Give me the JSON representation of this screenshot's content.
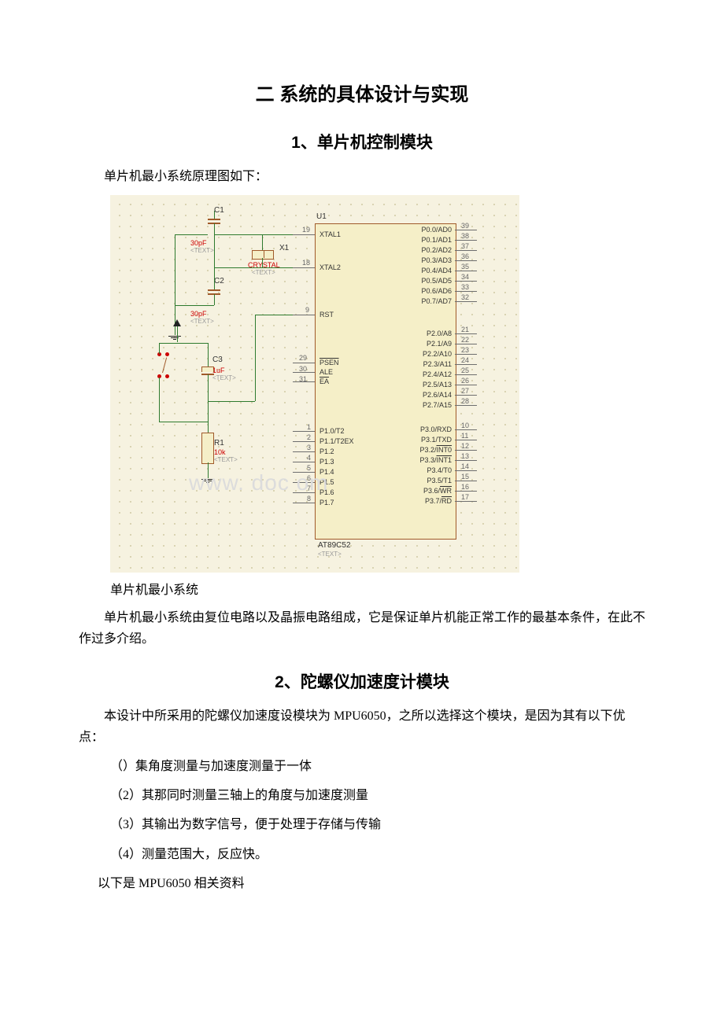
{
  "headings": {
    "h1": "二 系统的具体设计与实现",
    "h2a": "1、单片机控制模块",
    "h2b": "2、陀螺仪加速度计模块"
  },
  "paragraphs": {
    "p1": "单片机最小系统原理图如下：",
    "caption": "单片机最小系统",
    "p2": "单片机最小系统由复位电路以及晶振电路组成，它是保证单片机能正常工作的最基本条件，在此不作过多介绍。",
    "p3": "本设计中所采用的陀螺仪加速度设模块为 MPU6050，之所以选择这个模块，是因为其有以下优点：",
    "li1": "（）集角度测量与加速度测量于一体",
    "li2": "（2）其那同时测量三轴上的角度与加速度测量",
    "li3": "（3）其输出为数字信号，便于处理于存储与传输",
    "li4": "（4）测量范围大，反应快。",
    "p4": "以下是 MPU6050 相关资料"
  },
  "schematic": {
    "background": "#f6f2e0",
    "grid_dot_color": "#cfc9a3",
    "wire_color": "#2e7a2e",
    "outline_color": "#a05a2a",
    "text_color": "#333333",
    "red_text": "#c00000",
    "watermark": "www.    doc     om",
    "chip": {
      "ref": "U1",
      "part": "AT89C52",
      "txt": "<TEXT>",
      "left_pins": [
        {
          "num": "19",
          "label": "XTAL1"
        },
        {
          "num": "18",
          "label": "XTAL2"
        },
        {
          "num": "9",
          "label": "RST"
        },
        {
          "num": "29",
          "label": "PSEN",
          "ov": true
        },
        {
          "num": "30",
          "label": "ALE"
        },
        {
          "num": "31",
          "label": "EA",
          "ov": true
        },
        {
          "num": "1",
          "label": "P1.0/T2"
        },
        {
          "num": "2",
          "label": "P1.1/T2EX"
        },
        {
          "num": "3",
          "label": "P1.2"
        },
        {
          "num": "4",
          "label": "P1.3"
        },
        {
          "num": "5",
          "label": "P1.4"
        },
        {
          "num": "6",
          "label": "P1.5"
        },
        {
          "num": "7",
          "label": "P1.6"
        },
        {
          "num": "8",
          "label": "P1.7"
        }
      ],
      "right_pins": [
        {
          "num": "39",
          "label": "P0.0/AD0"
        },
        {
          "num": "38",
          "label": "P0.1/AD1"
        },
        {
          "num": "37",
          "label": "P0.2/AD2"
        },
        {
          "num": "36",
          "label": "P0.3/AD3"
        },
        {
          "num": "35",
          "label": "P0.4/AD4"
        },
        {
          "num": "34",
          "label": "P0.5/AD5"
        },
        {
          "num": "33",
          "label": "P0.6/AD6"
        },
        {
          "num": "32",
          "label": "P0.7/AD7"
        },
        {
          "num": "21",
          "label": "P2.0/A8"
        },
        {
          "num": "22",
          "label": "P2.1/A9"
        },
        {
          "num": "23",
          "label": "P2.2/A10"
        },
        {
          "num": "24",
          "label": "P2.3/A11"
        },
        {
          "num": "25",
          "label": "P2.4/A12"
        },
        {
          "num": "26",
          "label": "P2.5/A13"
        },
        {
          "num": "27",
          "label": "P2.6/A14"
        },
        {
          "num": "28",
          "label": "P2.7/A15"
        },
        {
          "num": "10",
          "label": "P3.0/RXD"
        },
        {
          "num": "11",
          "label": "P3.1/TXD"
        },
        {
          "num": "12",
          "label": "P3.2/INT0",
          "ov": "INT0"
        },
        {
          "num": "13",
          "label": "P3.3/INT1",
          "ov": "INT1"
        },
        {
          "num": "14",
          "label": "P3.4/T0"
        },
        {
          "num": "15",
          "label": "P3.5/T1"
        },
        {
          "num": "16",
          "label": "P3.6/WR",
          "ov": "WR"
        },
        {
          "num": "17",
          "label": "P3.7/RD",
          "ov": "RD"
        }
      ]
    },
    "components": {
      "C1": {
        "ref": "C1",
        "val": "30pF",
        "txt": "<TEXT>"
      },
      "C2": {
        "ref": "C2",
        "val": "30pF",
        "txt": "<TEXT>"
      },
      "C3": {
        "ref": "C3",
        "val": "1uF",
        "txt": "<TEXT>"
      },
      "X1": {
        "ref": "X1",
        "val": "CRYSTAL",
        "txt": "<TEXT>"
      },
      "R1": {
        "ref": "R1",
        "val": "10k",
        "txt": "<TEXT>"
      }
    }
  }
}
